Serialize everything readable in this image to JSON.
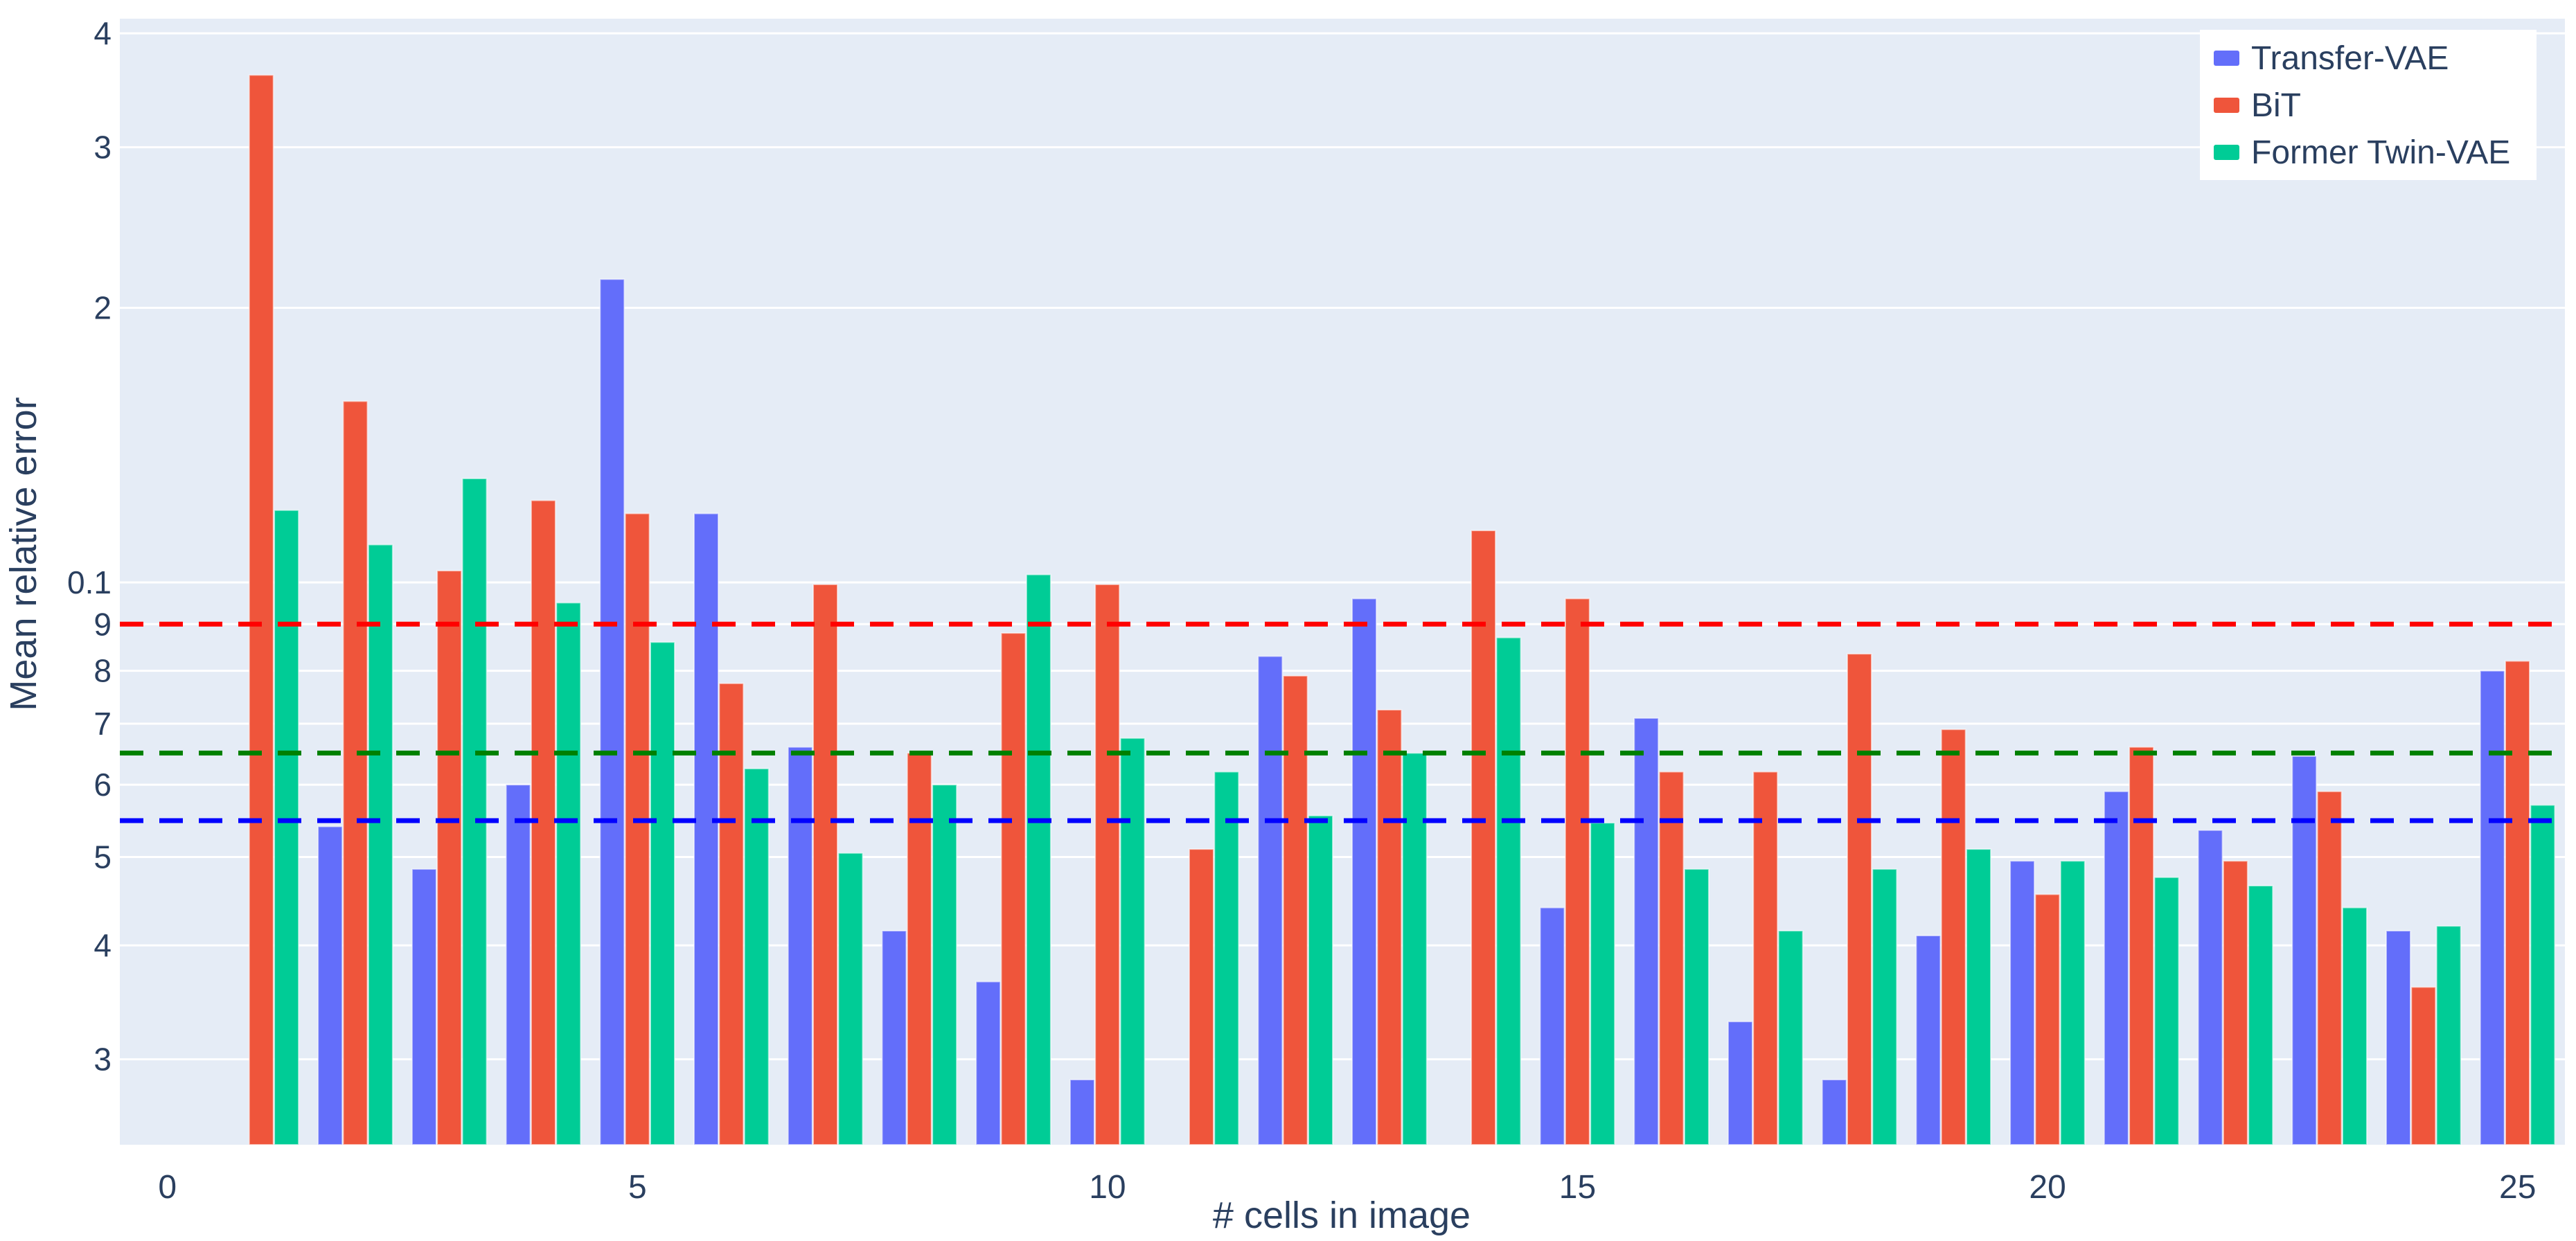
{
  "chart_data": {
    "type": "bar",
    "title": "",
    "xlabel": "# cells in image",
    "ylabel": "Mean relative error",
    "legend_position": "top-right",
    "grid": "on",
    "background_color": "#E5ECF6",
    "gridline_color": "#FFFFFF",
    "text_color": "#2A3F5F",
    "yaxis": {
      "scale": "log",
      "range": [
        0.024,
        0.415
      ],
      "ticks": [
        {
          "label": "4",
          "value": 0.4
        },
        {
          "label": "3",
          "value": 0.3
        },
        {
          "label": "2",
          "value": 0.2
        },
        {
          "label": "0.1",
          "value": 0.1
        },
        {
          "label": "9",
          "value": 0.09
        },
        {
          "label": "8",
          "value": 0.08
        },
        {
          "label": "7",
          "value": 0.07
        },
        {
          "label": "6",
          "value": 0.06
        },
        {
          "label": "5",
          "value": 0.05
        },
        {
          "label": "4",
          "value": 0.04
        },
        {
          "label": "3",
          "value": 0.03
        }
      ]
    },
    "xaxis": {
      "range": [
        -0.51,
        25.5
      ],
      "ticks": [
        {
          "label": "0",
          "value": 0
        },
        {
          "label": "5",
          "value": 5
        },
        {
          "label": "10",
          "value": 10
        },
        {
          "label": "15",
          "value": 15
        },
        {
          "label": "20",
          "value": 20
        },
        {
          "label": "25",
          "value": 25
        }
      ]
    },
    "x": [
      1,
      2,
      3,
      4,
      5,
      6,
      7,
      8,
      9,
      10,
      11,
      12,
      13,
      14,
      15,
      16,
      17,
      18,
      19,
      20,
      21,
      22,
      23,
      24,
      25
    ],
    "series": [
      {
        "name": "Transfer-VAE",
        "color": "#636EFA",
        "values": [
          null,
          0.054,
          0.0485,
          0.06,
          0.215,
          0.119,
          0.066,
          0.0415,
          0.0365,
          0.0285,
          null,
          0.083,
          0.096,
          null,
          0.044,
          0.071,
          0.033,
          0.0285,
          0.041,
          0.0495,
          0.059,
          0.0535,
          0.0645,
          0.0415,
          0.08
        ]
      },
      {
        "name": "BiT",
        "color": "#EF553B",
        "values": [
          0.36,
          0.158,
          0.103,
          0.123,
          0.119,
          0.0775,
          0.0995,
          0.065,
          0.088,
          0.0995,
          0.051,
          0.079,
          0.0725,
          0.114,
          0.096,
          0.062,
          0.062,
          0.0835,
          0.069,
          0.0455,
          0.066,
          0.0495,
          0.059,
          0.036,
          0.082
        ]
      },
      {
        "name": "Former Twin-VAE",
        "color": "#00CC96",
        "values": [
          0.12,
          0.11,
          0.13,
          0.095,
          0.086,
          0.0625,
          0.0505,
          0.06,
          0.102,
          0.0675,
          0.062,
          0.0555,
          0.065,
          0.087,
          0.0545,
          0.0485,
          0.0415,
          0.0485,
          0.051,
          0.0495,
          0.0475,
          0.0465,
          0.044,
          0.042,
          0.057
        ]
      }
    ],
    "mean_lines": [
      {
        "series": "BiT",
        "color": "#FF0000",
        "value": 0.09
      },
      {
        "series": "Former Twin-VAE",
        "color": "#008000",
        "value": 0.065
      },
      {
        "series": "Transfer-VAE",
        "color": "#0000FF",
        "value": 0.0548
      }
    ]
  }
}
